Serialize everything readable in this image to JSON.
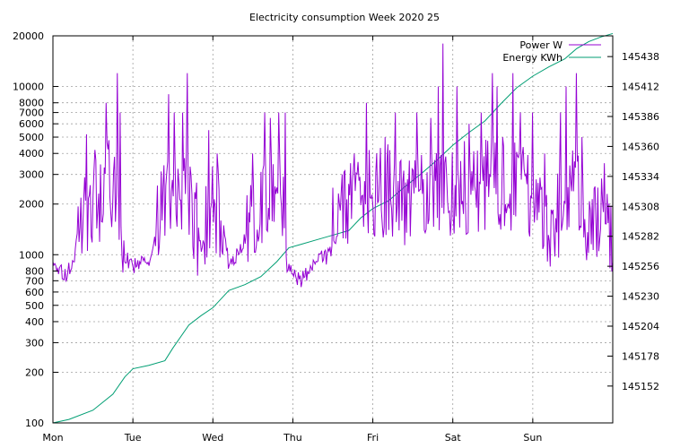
{
  "chart_data": {
    "type": "line",
    "title": "Electricity consumption Week 2020 25",
    "xlabel": "",
    "ylabel": "",
    "y2label": "",
    "x_ticks": [
      "Mon",
      "Tue",
      "Wed",
      "Thu",
      "Fri",
      "Sat",
      "Sun"
    ],
    "xlim_days": [
      0,
      7
    ],
    "y_scale": "log",
    "ylim": [
      100,
      20000
    ],
    "y_ticks": [
      {
        "value": 100,
        "label": "100"
      },
      {
        "value": 200,
        "label": "200"
      },
      {
        "value": 300,
        "label": "300"
      },
      {
        "value": 400,
        "label": "400"
      },
      {
        "value": 500,
        "label": "500"
      },
      {
        "value": 600,
        "label": "600"
      },
      {
        "value": 700,
        "label": "700"
      },
      {
        "value": 800,
        "label": "800"
      },
      {
        "value": 1000,
        "label": "1000"
      },
      {
        "value": 2000,
        "label": "2000"
      },
      {
        "value": 3000,
        "label": "3000"
      },
      {
        "value": 4000,
        "label": "4000"
      },
      {
        "value": 5000,
        "label": "5000"
      },
      {
        "value": 6000,
        "label": "6000"
      },
      {
        "value": 7000,
        "label": "7000"
      },
      {
        "value": 8000,
        "label": "8000"
      },
      {
        "value": 10000,
        "label": "10000"
      },
      {
        "value": 20000,
        "label": "20000"
      }
    ],
    "y2lim": [
      145120,
      145456
    ],
    "y2_ticks": [
      145152,
      145178,
      145204,
      145230,
      145256,
      145282,
      145308,
      145334,
      145360,
      145386,
      145412,
      145438
    ],
    "grid": true,
    "legend_position": "top-right",
    "series": [
      {
        "name": "Power W",
        "axis": "y",
        "color": "#9400d3",
        "profile": [
          [
            0.0,
            850
          ],
          [
            0.1,
            800
          ],
          [
            0.18,
            780
          ],
          [
            0.28,
            1000
          ],
          [
            0.35,
            1700
          ],
          [
            0.5,
            2000
          ],
          [
            0.62,
            2200
          ],
          [
            0.75,
            2800
          ],
          [
            0.9,
            1000
          ],
          [
            1.0,
            870
          ],
          [
            1.15,
            900
          ],
          [
            1.25,
            1000
          ],
          [
            1.38,
            2000
          ],
          [
            1.55,
            2500
          ],
          [
            1.72,
            2000
          ],
          [
            1.85,
            1100
          ],
          [
            2.0,
            2000
          ],
          [
            2.12,
            1500
          ],
          [
            2.2,
            850
          ],
          [
            2.35,
            1100
          ],
          [
            2.5,
            1500
          ],
          [
            2.62,
            2200
          ],
          [
            2.75,
            2800
          ],
          [
            2.85,
            2500
          ],
          [
            2.92,
            900
          ],
          [
            3.0,
            780
          ],
          [
            3.1,
            700
          ],
          [
            3.3,
            950
          ],
          [
            3.45,
            1000
          ],
          [
            3.55,
            1200
          ],
          [
            3.7,
            2000
          ],
          [
            3.85,
            2400
          ],
          [
            4.0,
            2200
          ],
          [
            4.2,
            2500
          ],
          [
            4.4,
            2000
          ],
          [
            4.5,
            2200
          ],
          [
            4.7,
            2400
          ],
          [
            4.85,
            2600
          ],
          [
            5.0,
            2400
          ],
          [
            5.2,
            2500
          ],
          [
            5.5,
            2600
          ],
          [
            5.7,
            2500
          ],
          [
            5.9,
            2500
          ],
          [
            6.1,
            2000
          ],
          [
            6.25,
            1500
          ],
          [
            6.4,
            2000
          ],
          [
            6.55,
            2500
          ],
          [
            6.7,
            1500
          ],
          [
            6.85,
            1500
          ],
          [
            7.0,
            1350
          ]
        ],
        "peaks": [
          [
            0.42,
            5200
          ],
          [
            0.52,
            4200
          ],
          [
            0.66,
            8000
          ],
          [
            0.8,
            12000
          ],
          [
            0.84,
            7000
          ],
          [
            1.45,
            9000
          ],
          [
            1.52,
            7000
          ],
          [
            1.62,
            7000
          ],
          [
            1.68,
            12000
          ],
          [
            1.95,
            5500
          ],
          [
            2.05,
            4000
          ],
          [
            2.5,
            4000
          ],
          [
            2.65,
            7000
          ],
          [
            2.72,
            6500
          ],
          [
            2.82,
            7000
          ],
          [
            2.9,
            7000
          ],
          [
            3.5,
            2500
          ],
          [
            3.62,
            3000
          ],
          [
            3.72,
            3500
          ],
          [
            3.82,
            3500
          ],
          [
            3.92,
            8000
          ],
          [
            4.05,
            4000
          ],
          [
            4.15,
            5000
          ],
          [
            4.28,
            7000
          ],
          [
            4.55,
            7000
          ],
          [
            4.72,
            6500
          ],
          [
            4.82,
            10000
          ],
          [
            4.88,
            18000
          ],
          [
            5.05,
            10000
          ],
          [
            5.2,
            6000
          ],
          [
            5.35,
            7000
          ],
          [
            5.5,
            12000
          ],
          [
            5.55,
            10000
          ],
          [
            5.62,
            5000
          ],
          [
            5.75,
            12000
          ],
          [
            5.85,
            7000
          ],
          [
            6.0,
            7000
          ],
          [
            6.15,
            4000
          ],
          [
            6.35,
            7000
          ],
          [
            6.42,
            10000
          ],
          [
            6.55,
            12000
          ],
          [
            6.62,
            5000
          ],
          [
            6.9,
            3500
          ]
        ]
      },
      {
        "name": "Energy KWh",
        "axis": "y2",
        "color": "#009e73",
        "points": [
          [
            0.0,
            145120
          ],
          [
            0.2,
            145123
          ],
          [
            0.5,
            145131
          ],
          [
            0.75,
            145145
          ],
          [
            0.9,
            145160
          ],
          [
            1.0,
            145167
          ],
          [
            1.2,
            145170
          ],
          [
            1.4,
            145174
          ],
          [
            1.5,
            145185
          ],
          [
            1.7,
            145205
          ],
          [
            1.85,
            145213
          ],
          [
            2.0,
            145220
          ],
          [
            2.2,
            145235
          ],
          [
            2.4,
            145240
          ],
          [
            2.6,
            145247
          ],
          [
            2.8,
            145260
          ],
          [
            2.95,
            145272
          ],
          [
            3.1,
            145275
          ],
          [
            3.3,
            145279
          ],
          [
            3.5,
            145283
          ],
          [
            3.7,
            145287
          ],
          [
            3.85,
            145298
          ],
          [
            4.0,
            145306
          ],
          [
            4.2,
            145313
          ],
          [
            4.4,
            145325
          ],
          [
            4.6,
            145336
          ],
          [
            4.8,
            145348
          ],
          [
            5.0,
            145361
          ],
          [
            5.2,
            145372
          ],
          [
            5.4,
            145382
          ],
          [
            5.6,
            145397
          ],
          [
            5.8,
            145411
          ],
          [
            6.0,
            145421
          ],
          [
            6.2,
            145429
          ],
          [
            6.4,
            145436
          ],
          [
            6.55,
            145445
          ],
          [
            6.7,
            145451
          ],
          [
            6.85,
            145455
          ],
          [
            7.0,
            145458
          ]
        ]
      }
    ]
  }
}
